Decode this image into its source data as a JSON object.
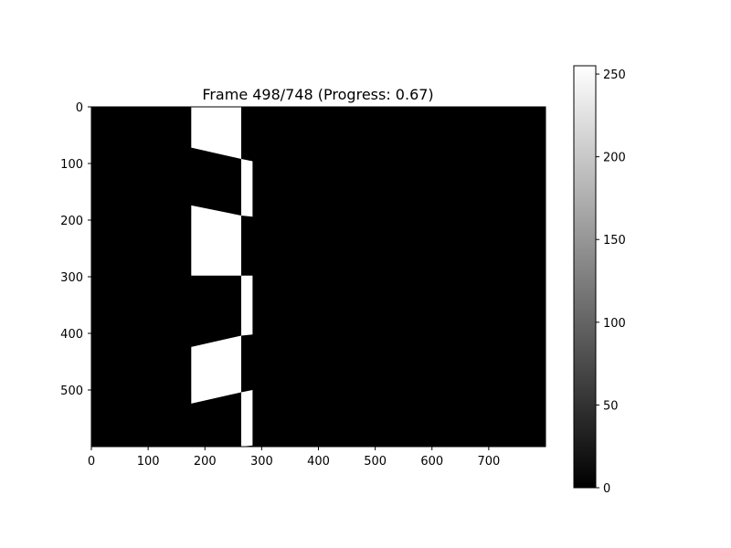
{
  "chart_data": {
    "type": "heatmap",
    "title": "Frame 498/748 (Progress: 0.67)",
    "xlabel": "",
    "ylabel": "",
    "xlim": [
      0,
      800
    ],
    "ylim": [
      600,
      0
    ],
    "x_ticks": [
      0,
      100,
      200,
      300,
      400,
      500,
      600,
      700
    ],
    "y_ticks": [
      0,
      100,
      200,
      300,
      400,
      500
    ],
    "grid": false,
    "colormap": "gray",
    "background_value": 0,
    "colorbar": {
      "range": [
        0,
        255
      ],
      "ticks": [
        0,
        50,
        100,
        150,
        200,
        250
      ]
    },
    "regions": [
      {
        "value": 255,
        "points": [
          [
            176,
            0
          ],
          [
            264,
            0
          ],
          [
            264,
            92
          ],
          [
            176,
            72
          ]
        ]
      },
      {
        "value": 255,
        "points": [
          [
            264,
            92
          ],
          [
            284,
            96
          ],
          [
            284,
            194
          ],
          [
            264,
            192
          ]
        ]
      },
      {
        "value": 255,
        "points": [
          [
            176,
            174
          ],
          [
            264,
            192
          ],
          [
            264,
            298
          ],
          [
            176,
            298
          ]
        ]
      },
      {
        "value": 255,
        "points": [
          [
            264,
            298
          ],
          [
            284,
            298
          ],
          [
            284,
            402
          ],
          [
            264,
            404
          ]
        ]
      },
      {
        "value": 255,
        "points": [
          [
            176,
            424
          ],
          [
            264,
            404
          ],
          [
            264,
            504
          ],
          [
            176,
            524
          ]
        ]
      },
      {
        "value": 255,
        "points": [
          [
            264,
            504
          ],
          [
            284,
            500
          ],
          [
            284,
            598
          ],
          [
            264,
            600
          ]
        ]
      }
    ]
  }
}
